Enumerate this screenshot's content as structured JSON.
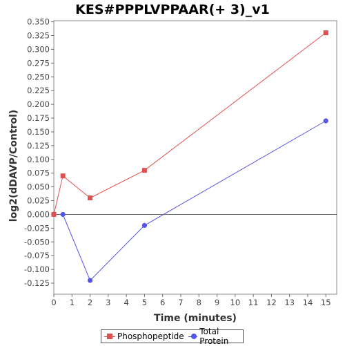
{
  "chart_data": {
    "type": "line",
    "title": "KES#PPPLVPPAAR(+ 3)_v1",
    "xlabel": "Time (minutes)",
    "ylabel": "log2(dDAVP/Control)",
    "xlim": [
      0,
      15.6
    ],
    "ylim": [
      -0.145,
      0.352
    ],
    "x_ticks": [
      0,
      1,
      2,
      3,
      4,
      5,
      6,
      7,
      8,
      9,
      10,
      11,
      12,
      13,
      14,
      15
    ],
    "y_ticks": [
      -0.125,
      -0.1,
      -0.075,
      -0.05,
      -0.025,
      0.0,
      0.025,
      0.05,
      0.075,
      0.1,
      0.125,
      0.15,
      0.175,
      0.2,
      0.225,
      0.25,
      0.275,
      0.3,
      0.325,
      0.35
    ],
    "y_tick_labels": [
      "-0.125",
      "-0.100",
      "-0.075",
      "-0.050",
      "-0.025",
      "0.000",
      "0.025",
      "0.050",
      "0.075",
      "0.100",
      "0.125",
      "0.150",
      "0.175",
      "0.200",
      "0.225",
      "0.250",
      "0.275",
      "0.300",
      "0.325",
      "0.350"
    ],
    "grid": false,
    "zero_line": true,
    "legend_position": "bottom",
    "series": [
      {
        "name": "Phosphopeptide",
        "color": "#e05050",
        "marker": "square",
        "x": [
          0,
          0.5,
          2,
          5,
          15
        ],
        "y": [
          0.0,
          0.07,
          0.03,
          0.08,
          0.33
        ]
      },
      {
        "name": "Total Protein",
        "color": "#5555e8",
        "marker": "circle",
        "x": [
          0.5,
          2,
          5,
          15
        ],
        "y": [
          0.0,
          -0.12,
          -0.02,
          0.17
        ]
      }
    ]
  }
}
